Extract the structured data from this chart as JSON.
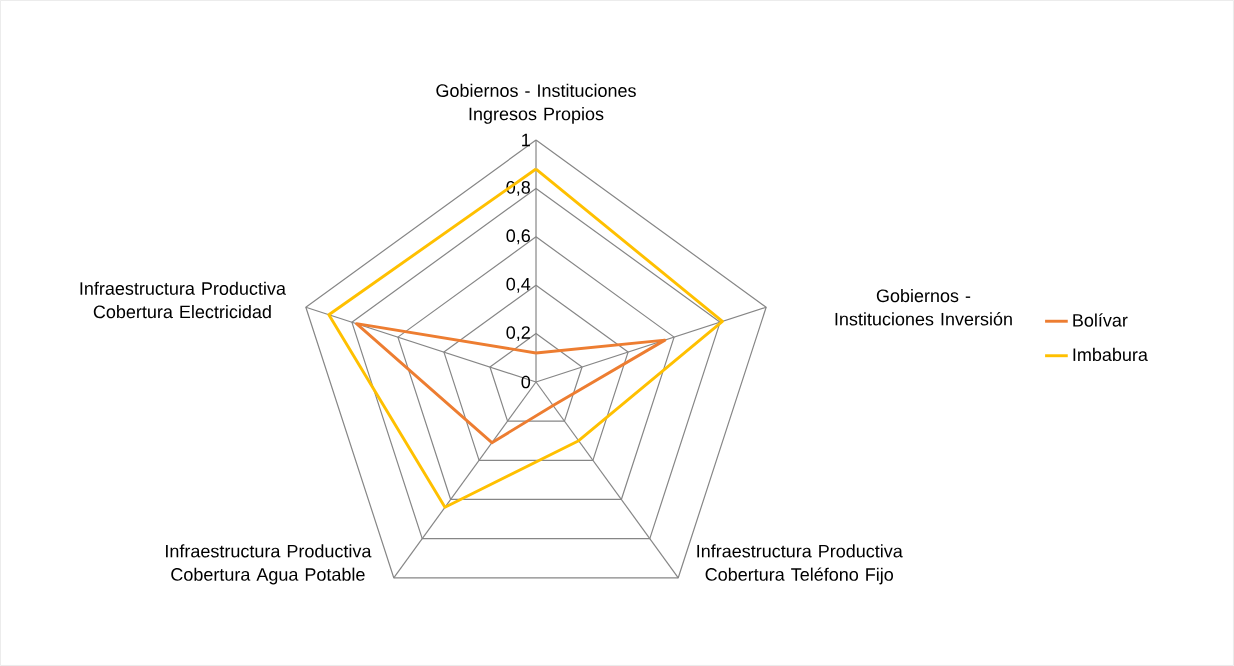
{
  "chart_data": {
    "type": "radar",
    "categories": [
      "Gobiernos - Instituciones Ingresos Propios",
      "Gobiernos - Instituciones Inversión",
      "Infraestructura Productiva Cobertura Teléfono Fijo",
      "Infraestructura Productiva Cobertura Agua Potable",
      "Infraestructura Productiva Cobertura Electricidad"
    ],
    "series": [
      {
        "name": "Bolívar",
        "color": "#ed7d31",
        "values": [
          0.12,
          0.56,
          0.12,
          0.31,
          0.78
        ]
      },
      {
        "name": "Imbabura",
        "color": "#ffc000",
        "values": [
          0.88,
          0.81,
          0.3,
          0.64,
          0.9
        ]
      }
    ],
    "ylim": [
      0,
      1
    ],
    "yticks": [
      {
        "value": 0,
        "label": "0"
      },
      {
        "value": 0.2,
        "label": "0,2"
      },
      {
        "value": 0.4,
        "label": "0,4"
      },
      {
        "value": 0.6,
        "label": "0,6"
      },
      {
        "value": 0.8,
        "label": "0,8"
      },
      {
        "value": 1,
        "label": "1"
      }
    ],
    "grid": true,
    "legend": "right"
  }
}
